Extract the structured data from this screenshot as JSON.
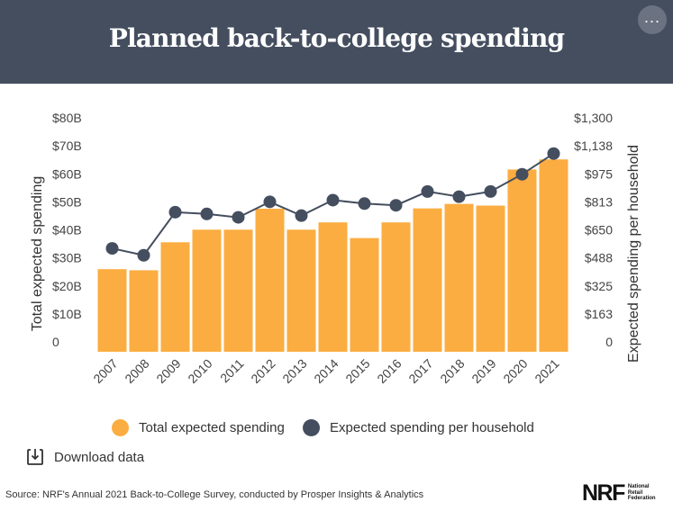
{
  "header": {
    "title": "Planned back-to-college spending",
    "more_icon": "more-horizontal-icon"
  },
  "chart_data": {
    "type": "bar",
    "categories": [
      "2007",
      "2008",
      "2009",
      "2010",
      "2011",
      "2012",
      "2013",
      "2014",
      "2015",
      "2016",
      "2017",
      "2018",
      "2019",
      "2020",
      "2021"
    ],
    "series": [
      {
        "name": "Total expected spending",
        "kind": "bar",
        "axis": "left",
        "unit": "billion USD",
        "values": [
          29.5,
          29.1,
          39.1,
          43.6,
          43.6,
          51.1,
          43.6,
          46.2,
          40.6,
          46.2,
          51.2,
          52.8,
          52.2,
          65.1,
          68.7
        ],
        "color": "#fbad41"
      },
      {
        "name": "Expected spending per household",
        "kind": "line",
        "axis": "right",
        "unit": "USD",
        "values": [
          600,
          560,
          810,
          800,
          780,
          870,
          790,
          880,
          860,
          850,
          930,
          900,
          930,
          1030,
          1150
        ],
        "color": "#444e5f"
      }
    ],
    "left_axis": {
      "label": "Total expected spending",
      "range": [
        0,
        80
      ],
      "ticks": [
        "0",
        "$10B",
        "$20B",
        "$30B",
        "$40B",
        "$50B",
        "$60B",
        "$70B",
        "$80B"
      ]
    },
    "right_axis": {
      "label": "Expected spending per household",
      "range": [
        0,
        1300
      ],
      "ticks": [
        "0",
        "$163",
        "$325",
        "$488",
        "$650",
        "$813",
        "$975",
        "$1,138",
        "$1,300"
      ]
    },
    "grid": false,
    "legend_position": "bottom"
  },
  "legend": {
    "items": [
      {
        "label": "Total expected spending",
        "color": "#fbad41"
      },
      {
        "label": "Expected spending per household",
        "color": "#444e5f"
      }
    ]
  },
  "download": {
    "label": "Download data",
    "icon": "download-icon"
  },
  "footer": {
    "source": "Source: NRF's Annual 2021 Back-to-College Survey, conducted by Prosper Insights & Analytics",
    "logo_mark": "NRF",
    "logo_lines": [
      "National",
      "Retail",
      "Federation"
    ]
  }
}
